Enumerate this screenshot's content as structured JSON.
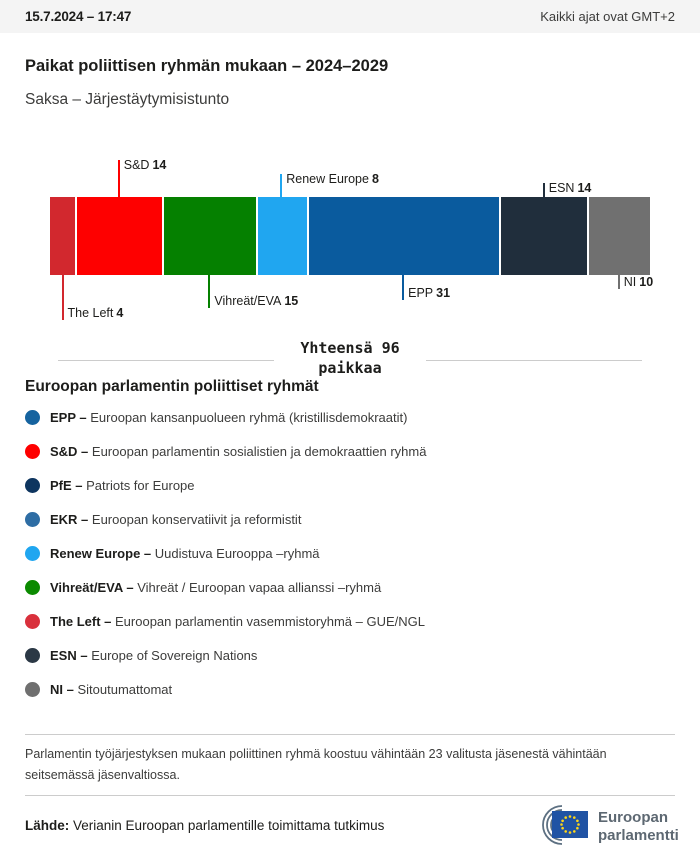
{
  "header": {
    "datetime": "15.7.2024 – 17:47",
    "timezone_note": "Kaikki ajat ovat GMT+2"
  },
  "title": "Paikat poliittisen ryhmän mukaan – 2024–2029",
  "subtitle": "Saksa – Järjestäytymisistunto",
  "chart_data": {
    "type": "bar",
    "orientation": "horizontal-stacked",
    "title": "Paikat poliittisen ryhmän mukaan – 2024–2029",
    "subtitle": "Saksa – Järjestäytymisistunto",
    "total_seats": 96,
    "total_label": "Yhteensä 96\npaikkaa",
    "segments": [
      {
        "name": "The Left",
        "seats": 4,
        "color": "#d2282e",
        "label_side": "bottom",
        "tick_len": 45
      },
      {
        "name": "S&D",
        "seats": 14,
        "color": "#fe0000",
        "label_side": "top",
        "tick_len": 37
      },
      {
        "name": "Vihreät/EVA",
        "seats": 15,
        "color": "#058000",
        "label_side": "bottom",
        "tick_len": 33
      },
      {
        "name": "Renew Europe",
        "seats": 8,
        "color": "#20a6f0",
        "label_side": "top",
        "tick_len": 23
      },
      {
        "name": "EPP",
        "seats": 31,
        "color": "#0a5b9e",
        "label_side": "bottom",
        "tick_len": 25
      },
      {
        "name": "ESN",
        "seats": 14,
        "color": "#202e3c",
        "label_side": "top",
        "tick_len": 14
      },
      {
        "name": "NI",
        "seats": 10,
        "color": "#707070",
        "label_side": "bottom",
        "tick_len": 14
      }
    ]
  },
  "legend": {
    "heading": "Euroopan parlamentin poliittiset ryhmät",
    "items": [
      {
        "abbr": "EPP – ",
        "desc": "Euroopan kansanpuolueen ryhmä (kristillisdemokraatit)",
        "color": "#15639f"
      },
      {
        "abbr": "S&D – ",
        "desc": "Euroopan parlamentin sosialistien ja demokraattien ryhmä",
        "color": "#fe0000"
      },
      {
        "abbr": "PfE – ",
        "desc": "Patriots for Europe",
        "color": "#0e355f"
      },
      {
        "abbr": "EKR – ",
        "desc": "Euroopan konservatiivit ja reformistit",
        "color": "#2e6da4"
      },
      {
        "abbr": "Renew Europe – ",
        "desc": "Uudistuva Eurooppa –ryhmä",
        "color": "#20a6f0"
      },
      {
        "abbr": "Vihreät/EVA – ",
        "desc": "Vihreät / Euroopan vapaa allianssi –ryhmä",
        "color": "#0b8a00"
      },
      {
        "abbr": "The Left – ",
        "desc": "Euroopan parlamentin vasemmistoryhmä – GUE/NGL",
        "color": "#d9303c"
      },
      {
        "abbr": "ESN – ",
        "desc": "Europe of Sovereign Nations",
        "color": "#2b3845"
      },
      {
        "abbr": "NI – ",
        "desc": "Sitoutumattomat",
        "color": "#6f6f6f"
      }
    ]
  },
  "footer": {
    "note": "Parlamentin työjärjestyksen mukaan poliittinen ryhmä koostuu vähintään 23 valitusta jäsenestä vähintään seitsemässä jäsenvaltiossa.",
    "source_label": "Lähde:",
    "source_text": " Verianin Euroopan parlamentille toimittama tutkimus",
    "logo_line1": "Euroopan",
    "logo_line2": "parlamentti"
  }
}
